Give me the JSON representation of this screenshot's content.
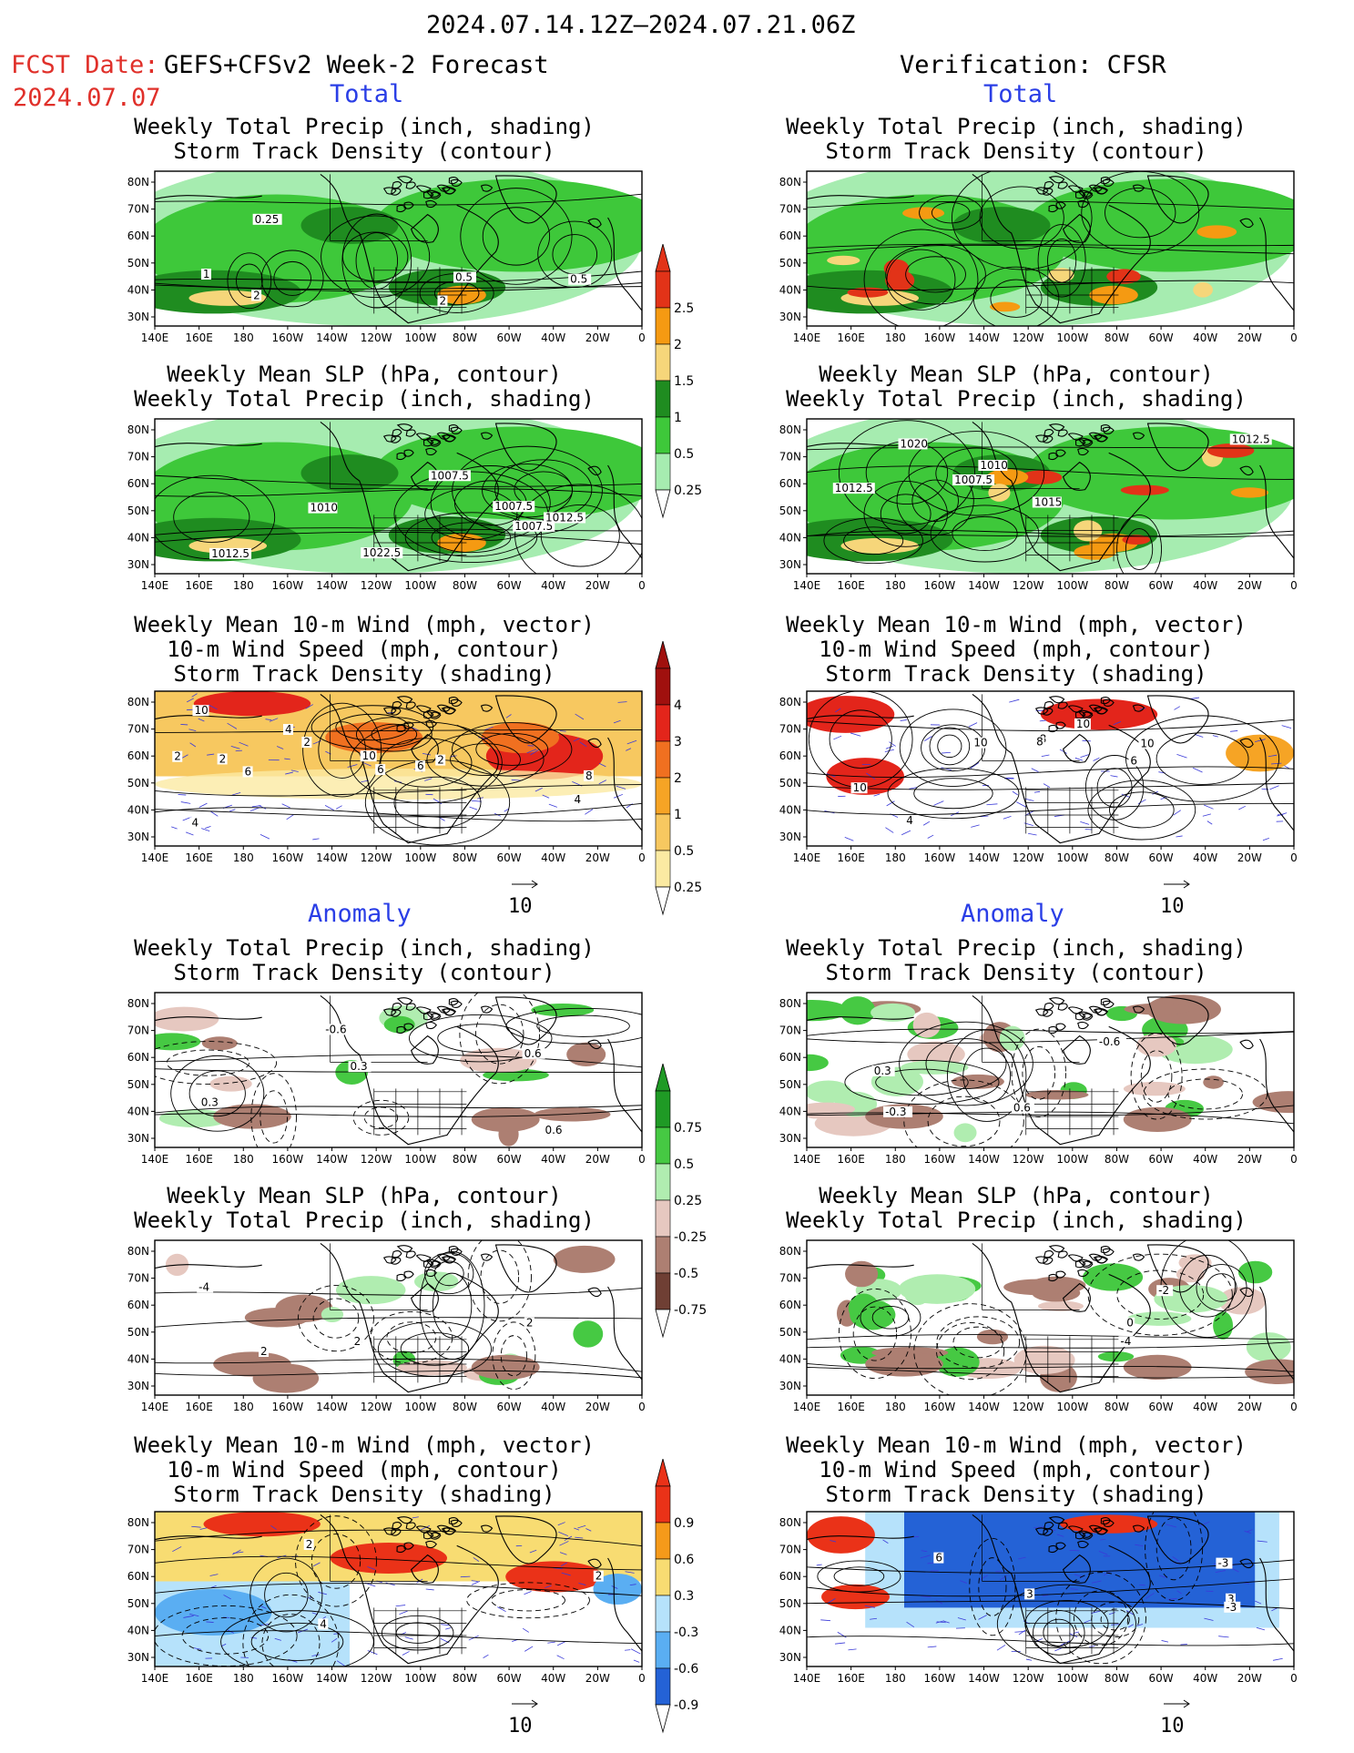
{
  "header": {
    "date_range": "2024.07.14.12Z–2024.07.21.06Z",
    "fcst_prefix": "FCST Date:",
    "fcst_model": "GEFS+CFSv2 Week-2 Forecast",
    "fcst_date": "2024.07.07",
    "verification": "Verification: CFSR"
  },
  "sections": {
    "total_left": "Total",
    "total_right": "Total",
    "anomaly_left": "Anomaly",
    "anomaly_right": "Anomaly"
  },
  "titles": {
    "precip_storm": [
      "Weekly Total Precip (inch, shading)",
      "Storm Track Density (contour)"
    ],
    "slp_precip": [
      "Weekly Mean SLP (hPa, contour)",
      "Weekly Total Precip (inch, shading)"
    ],
    "wind_storm": [
      "Weekly Mean 10-m Wind (mph, vector)",
      "10-m Wind Speed (mph, contour)",
      "Storm Track Density (shading)"
    ]
  },
  "axes": {
    "lon_labels": [
      "140E",
      "160E",
      "180",
      "160W",
      "140W",
      "120W",
      "100W",
      "80W",
      "60W",
      "40W",
      "20W",
      "0"
    ],
    "lat_labels": [
      "80N",
      "70N",
      "60N",
      "50N",
      "40N",
      "30N"
    ]
  },
  "colorbars": {
    "precip_total": {
      "labels": [
        "2.5",
        "2",
        "1.5",
        "1",
        "0.5",
        "0.25"
      ],
      "colors": [
        "#e23318",
        "#f59a12",
        "#f6d67a",
        "#1f8c20",
        "#3ec83a",
        "#a6ecb0"
      ]
    },
    "storm_total": {
      "labels": [
        "4",
        "3",
        "2",
        "1",
        "0.5",
        "0.25"
      ],
      "colors": [
        "#a0100e",
        "#e3251b",
        "#f07020",
        "#f6a425",
        "#f7c860",
        "#fbeaa2"
      ]
    },
    "precip_anom": {
      "labels": [
        "0.75",
        "0.5",
        "0.25",
        "-0.25",
        "-0.5",
        "-0.75"
      ],
      "colors": [
        "#1f9a25",
        "#46c943",
        "#b0edb0",
        "#e6c8c0",
        "#ad7f72",
        "#6f3f34"
      ]
    },
    "storm_anom": {
      "labels": [
        "0.9",
        "0.6",
        "0.3",
        "-0.3",
        "-0.6",
        "-0.9"
      ],
      "colors": [
        "#ea3218",
        "#f59a1a",
        "#f8dc72",
        "#b6e2fb",
        "#5aaef2",
        "#2462d6"
      ]
    }
  },
  "contour_labels": {
    "p1": [
      "2",
      "0.5",
      "1",
      "0.25",
      "2",
      "0.5"
    ],
    "p2": [
      "1007.5",
      "1007.5",
      "1010",
      "1007.5",
      "1012.5",
      "1012.5",
      "1022.5"
    ],
    "p3": [
      "2",
      "4",
      "6",
      "2",
      "2",
      "4",
      "6",
      "6",
      "2",
      "4",
      "10",
      "8",
      "10"
    ],
    "p4": [
      "0.6",
      "0.3",
      "0.6",
      "0.3",
      "-0.6"
    ],
    "p5": [
      "2",
      "2",
      "-4",
      "2"
    ],
    "p6": [
      "2",
      "4",
      "2"
    ],
    "r2": [
      "1012.5",
      "1010",
      "1012.5",
      "1007.5",
      "1015",
      "1020"
    ],
    "r3": [
      "10",
      "8",
      "4",
      "6",
      "10",
      "10",
      "8",
      "10"
    ],
    "r4": [
      "-0.3",
      "-0.6",
      "0.6",
      "0.3"
    ],
    "r5": [
      "0",
      "-2",
      "-4"
    ],
    "r6": [
      "6",
      "-3",
      "3",
      "-3",
      "3"
    ]
  },
  "vector_reference": [
    "10",
    "10",
    "10",
    "10"
  ]
}
